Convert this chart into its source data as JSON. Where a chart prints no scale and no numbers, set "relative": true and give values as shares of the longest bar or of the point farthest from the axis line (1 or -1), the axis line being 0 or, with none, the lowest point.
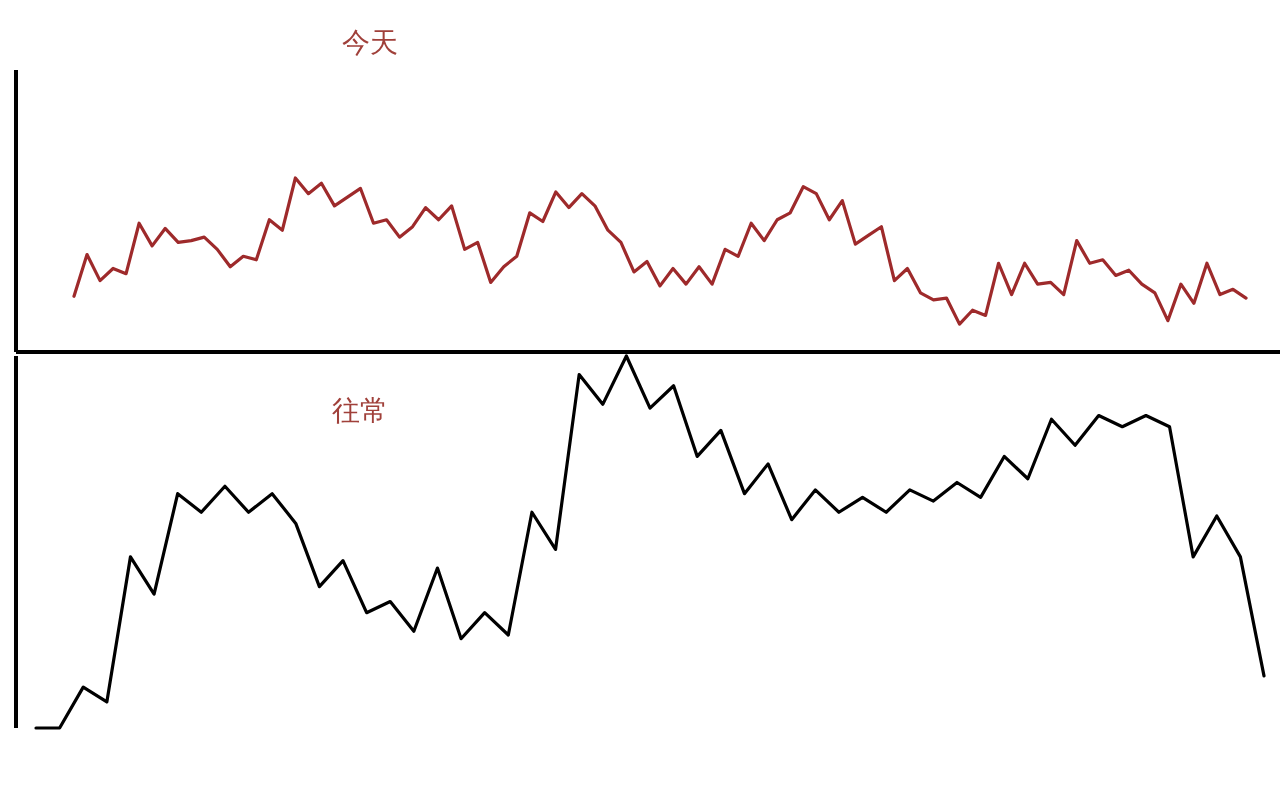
{
  "chart_data": [
    {
      "type": "line",
      "title": "今天",
      "relative": true,
      "categories": [
        null,
        null,
        null,
        null,
        null,
        null,
        null,
        null,
        null,
        null,
        null,
        null,
        null,
        null,
        null,
        null,
        null,
        null,
        null,
        null,
        null,
        null,
        null,
        null,
        null,
        null,
        null,
        null,
        null,
        null,
        null,
        null,
        null,
        null,
        null,
        null,
        null,
        null,
        null,
        null,
        null,
        null,
        null,
        null,
        null,
        null,
        null,
        null,
        null,
        null,
        null,
        null,
        null,
        null,
        null,
        null,
        null,
        null,
        null,
        null,
        null,
        null,
        null,
        null,
        null,
        null,
        null,
        null,
        null,
        null,
        null,
        null,
        null,
        null,
        null,
        null,
        null,
        null,
        null,
        null,
        null,
        null,
        null,
        null,
        null,
        null,
        null,
        null,
        null,
        null,
        null
      ],
      "series": [
        {
          "color": "#9e2a2b",
          "values": [
            0.32,
            0.56,
            0.41,
            0.48,
            0.45,
            0.74,
            0.61,
            0.71,
            0.63,
            0.64,
            0.66,
            0.59,
            0.49,
            0.55,
            0.53,
            0.76,
            0.7,
            1,
            0.91,
            0.97,
            0.84,
            0.89,
            0.94,
            0.74,
            0.76,
            0.66,
            0.72,
            0.83,
            0.76,
            0.84,
            0.59,
            0.63,
            0.4,
            0.49,
            0.55,
            0.8,
            0.75,
            0.92,
            0.83,
            0.91,
            0.84,
            0.7,
            0.63,
            0.46,
            0.52,
            0.38,
            0.48,
            0.39,
            0.49,
            0.39,
            0.59,
            0.55,
            0.74,
            0.64,
            0.76,
            0.8,
            0.95,
            0.91,
            0.76,
            0.87,
            0.62,
            0.67,
            0.72,
            0.41,
            0.48,
            0.34,
            0.3,
            0.31,
            0.16,
            0.24,
            0.21,
            0.51,
            0.33,
            0.51,
            0.39,
            0.4,
            0.33,
            0.64,
            0.51,
            0.53,
            0.44,
            0.47,
            0.39,
            0.34,
            0.18,
            0.39,
            0.28,
            0.51,
            0.33,
            0.36,
            0.31
          ]
        }
      ]
    },
    {
      "type": "line",
      "title": "往常",
      "relative": true,
      "categories": [
        null,
        null,
        null,
        null,
        null,
        null,
        null,
        null,
        null,
        null,
        null,
        null,
        null,
        null,
        null,
        null,
        null,
        null,
        null,
        null,
        null,
        null,
        null,
        null,
        null,
        null,
        null,
        null,
        null,
        null,
        null,
        null,
        null,
        null,
        null,
        null,
        null,
        null,
        null,
        null,
        null,
        null,
        null,
        null,
        null,
        null,
        null,
        null,
        null,
        null,
        null,
        null,
        null
      ],
      "series": [
        {
          "color": "#000000",
          "values": [
            0,
            0,
            0.11,
            0.07,
            0.46,
            0.36,
            0.63,
            0.58,
            0.65,
            0.58,
            0.63,
            0.55,
            0.38,
            0.45,
            0.31,
            0.34,
            0.26,
            0.43,
            0.24,
            0.31,
            0.25,
            0.58,
            0.48,
            0.95,
            0.87,
            1,
            0.86,
            0.92,
            0.73,
            0.8,
            0.63,
            0.71,
            0.56,
            0.64,
            0.58,
            0.62,
            0.58,
            0.64,
            0.61,
            0.66,
            0.62,
            0.73,
            0.67,
            0.83,
            0.76,
            0.84,
            0.81,
            0.84,
            0.81,
            0.46,
            0.57,
            0.46,
            0.14
          ]
        }
      ]
    }
  ]
}
